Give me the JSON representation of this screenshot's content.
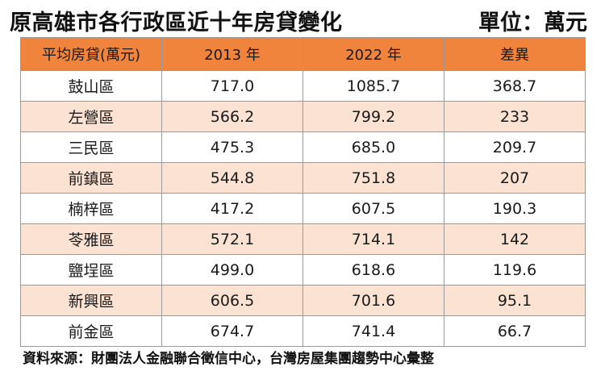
{
  "title": "原高雄市各行政區近十年房貸變化",
  "unit": "單位：萬元",
  "table": {
    "headers": [
      "平均房貸(萬元)",
      "2013 年",
      "2022 年",
      "差異"
    ],
    "rows": [
      [
        "鼓山區",
        "717.0",
        "1085.7",
        "368.7"
      ],
      [
        "左營區",
        "566.2",
        "799.2",
        "233"
      ],
      [
        "三民區",
        "475.3",
        "685.0",
        "209.7"
      ],
      [
        "前鎮區",
        "544.8",
        "751.8",
        "207"
      ],
      [
        "楠梓區",
        "417.2",
        "607.5",
        "190.3"
      ],
      [
        "苓雅區",
        "572.1",
        "714.1",
        "142"
      ],
      [
        "鹽埕區",
        "499.0",
        "618.6",
        "119.6"
      ],
      [
        "新興區",
        "606.5",
        "701.6",
        "95.1"
      ],
      [
        "前金區",
        "674.7",
        "741.4",
        "66.7"
      ]
    ]
  },
  "source": "資料來源：財團法人金融聯合徵信中心，台灣房屋集團趨勢中心彙整",
  "colors": {
    "header_bg": "#f0843c",
    "stripe_bg": "#fbe2d3"
  }
}
